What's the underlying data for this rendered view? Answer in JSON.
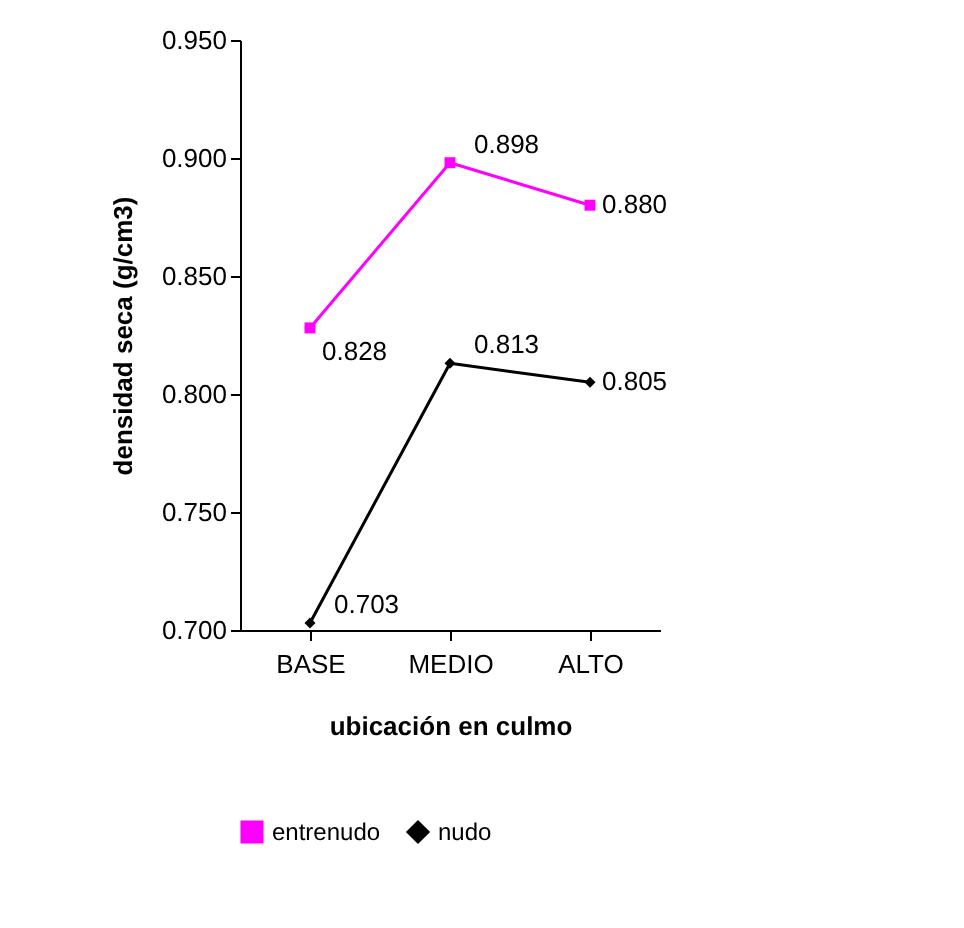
{
  "chart_data": {
    "type": "line",
    "xlabel": "ubicación en culmo",
    "ylabel": "densidad seca (g/cm3)",
    "categories": [
      "BASE",
      "MEDIO",
      "ALTO"
    ],
    "series": [
      {
        "name": "entrenudo",
        "color": "#ff00ff",
        "marker": "square",
        "values": [
          0.828,
          0.898,
          0.88
        ],
        "value_labels": [
          "0.828",
          "0.898",
          "0.880"
        ]
      },
      {
        "name": "nudo",
        "color": "#000000",
        "marker": "diamond",
        "values": [
          0.703,
          0.813,
          0.805
        ],
        "value_labels": [
          "0.703",
          "0.813",
          "0.805"
        ]
      }
    ],
    "ylim": [
      0.7,
      0.95
    ],
    "yticks": [
      {
        "value": 0.7,
        "label": "0.700"
      },
      {
        "value": 0.75,
        "label": "0.750"
      },
      {
        "value": 0.8,
        "label": "0.800"
      },
      {
        "value": 0.85,
        "label": "0.850"
      },
      {
        "value": 0.9,
        "label": "0.900"
      },
      {
        "value": 0.95,
        "label": "0.950"
      }
    ],
    "grid": false,
    "legend": "bottom",
    "line_style": "solid"
  }
}
